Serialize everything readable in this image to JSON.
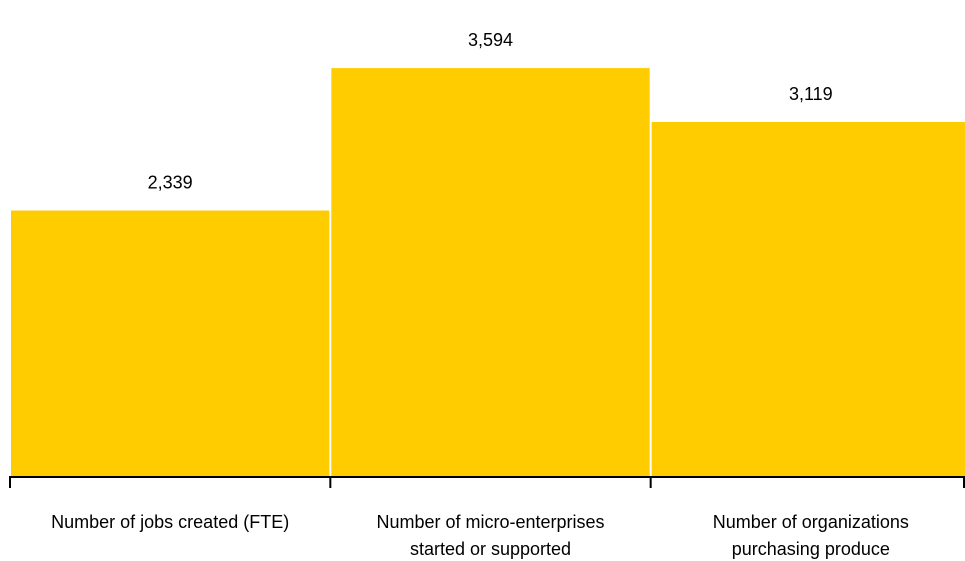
{
  "chart_data": {
    "type": "bar",
    "categories": [
      [
        "Number of jobs created (FTE)"
      ],
      [
        "Number of micro-enterprises",
        "started or supported"
      ],
      [
        "Number of organizations",
        "purchasing produce"
      ]
    ],
    "values": [
      2339,
      3594,
      3119
    ],
    "data_labels": [
      "2,339",
      "3,594",
      "3,119"
    ],
    "ylim": [
      0,
      4000
    ],
    "grid": false,
    "legend": "none",
    "bar_color": "#FFCC00",
    "axis_color": "#000000"
  }
}
